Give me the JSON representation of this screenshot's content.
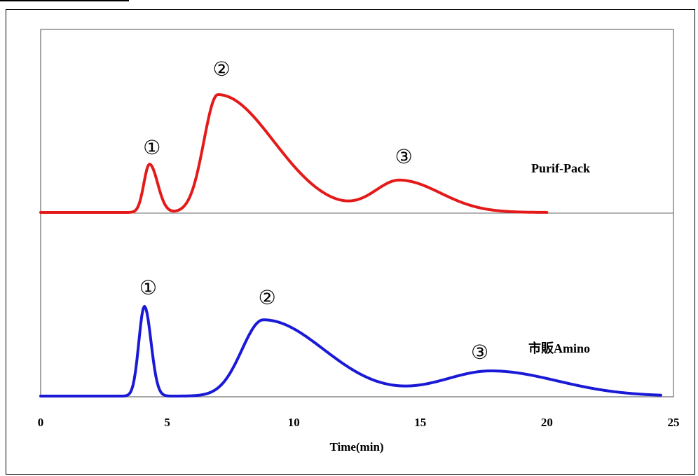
{
  "chart_data": {
    "type": "line",
    "xlabel": "Time(min)",
    "xlim": [
      0,
      25
    ],
    "x_ticks": [
      "0",
      "5",
      "10",
      "15",
      "20",
      "25"
    ],
    "grid": false,
    "series": [
      {
        "name": "Purif-Pack",
        "color": "#e41a1a",
        "peaks": [
          {
            "label": "①",
            "time": 4.3,
            "relative_height": 0.41
          },
          {
            "label": "②",
            "time": 7.0,
            "relative_height": 1.0
          },
          {
            "label": "③",
            "time": 14.2,
            "relative_height": 0.27
          }
        ],
        "end_time": 20
      },
      {
        "name": "市販Amino",
        "color": "#1a1ad6",
        "peaks": [
          {
            "label": "①",
            "time": 4.1,
            "relative_height": 1.0
          },
          {
            "label": "②",
            "time": 8.8,
            "relative_height": 0.85
          },
          {
            "label": "③",
            "time": 17.8,
            "relative_height": 0.28
          }
        ],
        "end_time": 24.5
      }
    ]
  }
}
